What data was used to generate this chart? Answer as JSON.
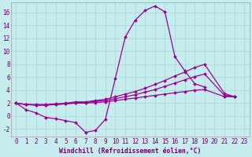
{
  "xlabel": "Windchill (Refroidissement éolien,°C)",
  "background_color": "#c6eded",
  "grid_color": "#b0d8d8",
  "line_color": "#990099",
  "marker": "D",
  "markersize": 2.0,
  "linewidth": 0.9,
  "xlim": [
    -0.5,
    23.5
  ],
  "ylim": [
    -3.2,
    17.5
  ],
  "xticks": [
    0,
    1,
    2,
    3,
    4,
    5,
    6,
    7,
    8,
    9,
    10,
    11,
    12,
    13,
    14,
    15,
    16,
    17,
    18,
    19,
    20,
    21,
    22,
    23
  ],
  "yticks": [
    -2,
    0,
    2,
    4,
    6,
    8,
    10,
    12,
    14,
    16
  ],
  "series1_x": [
    0,
    1,
    2,
    3,
    4,
    5,
    6,
    7,
    8,
    9,
    10,
    11,
    12,
    13,
    14,
    15,
    16,
    17,
    18,
    19,
    20,
    21,
    22
  ],
  "series1_y": [
    2.0,
    1.0,
    0.5,
    -0.2,
    -0.4,
    -0.7,
    -1.0,
    -2.5,
    -2.2,
    -0.5,
    5.8,
    12.2,
    14.8,
    16.3,
    17.0,
    16.1,
    9.2,
    7.0,
    5.0,
    4.5,
    null,
    3.2,
    3.0
  ],
  "series2_x": [
    0,
    1,
    2,
    3,
    4,
    5,
    6,
    7,
    8,
    9,
    10,
    11,
    12,
    13,
    14,
    15,
    16,
    17,
    18,
    19,
    21,
    22
  ],
  "series2_y": [
    2.0,
    1.8,
    1.7,
    1.7,
    1.8,
    1.9,
    2.0,
    2.0,
    2.1,
    2.2,
    2.4,
    2.6,
    2.8,
    3.0,
    3.2,
    3.4,
    3.6,
    3.8,
    4.0,
    4.1,
    3.0,
    3.0
  ],
  "series3_x": [
    0,
    1,
    2,
    3,
    4,
    5,
    6,
    7,
    8,
    9,
    10,
    11,
    12,
    13,
    14,
    15,
    16,
    17,
    18,
    19,
    21,
    22
  ],
  "series3_y": [
    2.0,
    1.8,
    1.7,
    1.7,
    1.8,
    1.9,
    2.1,
    2.1,
    2.3,
    2.4,
    2.7,
    3.0,
    3.3,
    3.7,
    4.1,
    4.6,
    5.1,
    5.6,
    6.1,
    6.5,
    3.2,
    3.0
  ],
  "series4_x": [
    0,
    1,
    2,
    3,
    4,
    5,
    6,
    7,
    8,
    9,
    10,
    11,
    12,
    13,
    14,
    15,
    16,
    17,
    18,
    19,
    21,
    22
  ],
  "series4_y": [
    2.0,
    1.8,
    1.8,
    1.8,
    1.9,
    2.0,
    2.2,
    2.2,
    2.4,
    2.6,
    3.0,
    3.4,
    3.8,
    4.3,
    4.9,
    5.5,
    6.2,
    6.8,
    7.5,
    8.0,
    3.5,
    3.0
  ],
  "tick_fontsize": 5.5,
  "xlabel_fontsize": 5.8
}
